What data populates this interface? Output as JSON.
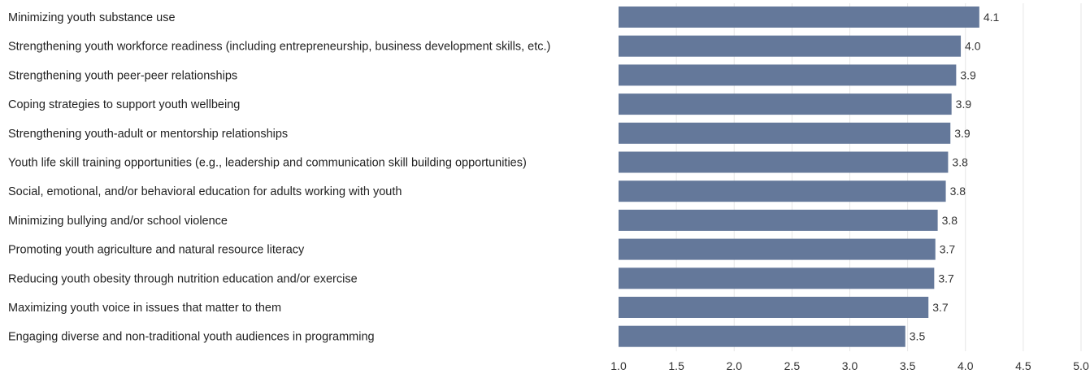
{
  "chart_data": {
    "type": "bar",
    "orientation": "horizontal",
    "categories": [
      "Minimizing youth substance use",
      "Strengthening youth workforce readiness (including entrepreneurship, business development skills, etc.)",
      "Strengthening youth peer-peer relationships",
      "Coping strategies to support youth wellbeing",
      "Strengthening youth-adult or mentorship relationships",
      "Youth life skill training opportunities (e.g., leadership and communication skill building opportunities)",
      "Social, emotional, and/or behavioral education for adults working with youth",
      "Minimizing bullying and/or school violence",
      "Promoting youth agriculture and natural resource literacy",
      "Reducing youth obesity through nutrition education and/or exercise",
      "Maximizing youth voice in issues that matter to them",
      "Engaging diverse and non-traditional youth audiences in programming"
    ],
    "values": [
      4.12,
      3.96,
      3.92,
      3.88,
      3.87,
      3.85,
      3.83,
      3.76,
      3.74,
      3.73,
      3.68,
      3.48
    ],
    "value_labels": [
      "4.1",
      "4.0",
      "3.9",
      "3.9",
      "3.9",
      "3.8",
      "3.8",
      "3.8",
      "3.7",
      "3.7",
      "3.7",
      "3.5"
    ],
    "x_ticks": [
      "1.0",
      "1.5",
      "2.0",
      "2.5",
      "3.0",
      "3.5",
      "4.0",
      "4.5",
      "5.0"
    ],
    "xlim": [
      1.0,
      5.0
    ],
    "title": "",
    "xlabel": "",
    "ylabel": "",
    "grid": true,
    "legend": "none",
    "bar_color": "#64789a"
  }
}
